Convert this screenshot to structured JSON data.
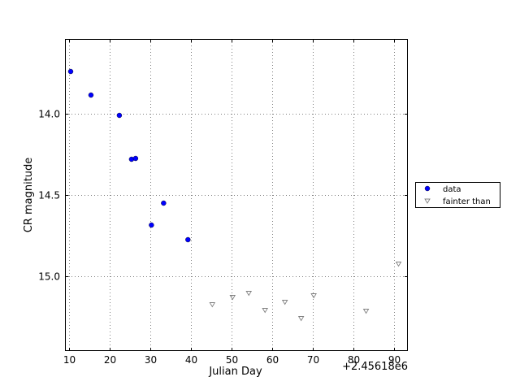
{
  "chart_data": {
    "type": "scatter",
    "xlabel": "Julian Day",
    "ylabel": "CR magnitude",
    "x_offset_label": "+2.45618e6",
    "xlim": [
      9,
      93.5
    ],
    "ylim": [
      15.46,
      13.54
    ],
    "y_inverted": true,
    "grid": true,
    "legend_position": "right",
    "x_ticks": [
      {
        "value": 10,
        "label": "10"
      },
      {
        "value": 20,
        "label": "20"
      },
      {
        "value": 30,
        "label": "30"
      },
      {
        "value": 40,
        "label": "40"
      },
      {
        "value": 50,
        "label": "50"
      },
      {
        "value": 60,
        "label": "60"
      },
      {
        "value": 70,
        "label": "70"
      },
      {
        "value": 80,
        "label": "80"
      },
      {
        "value": 90,
        "label": "90"
      }
    ],
    "y_ticks": [
      {
        "value": 14.0,
        "label": "14.0"
      },
      {
        "value": 14.5,
        "label": "14.5"
      },
      {
        "value": 15.0,
        "label": "15.0"
      }
    ],
    "series": [
      {
        "name": "data",
        "marker": "circle",
        "color": "#0000ff",
        "points": [
          {
            "x": 10.4,
            "y": 13.74
          },
          {
            "x": 15.4,
            "y": 13.885
          },
          {
            "x": 22.4,
            "y": 14.01
          },
          {
            "x": 25.4,
            "y": 14.28
          },
          {
            "x": 26.4,
            "y": 14.275
          },
          {
            "x": 30.3,
            "y": 14.685
          },
          {
            "x": 33.3,
            "y": 14.55
          },
          {
            "x": 39.3,
            "y": 14.775
          }
        ]
      },
      {
        "name": "fainter than",
        "marker": "triangle-down",
        "color": "#808080",
        "points": [
          {
            "x": 45.3,
            "y": 15.175
          },
          {
            "x": 50.3,
            "y": 15.13
          },
          {
            "x": 54.3,
            "y": 15.105
          },
          {
            "x": 58.3,
            "y": 15.21
          },
          {
            "x": 63.2,
            "y": 15.16
          },
          {
            "x": 67.2,
            "y": 15.26
          },
          {
            "x": 70.3,
            "y": 15.12
          },
          {
            "x": 83.2,
            "y": 15.215
          },
          {
            "x": 91.2,
            "y": 14.925
          }
        ]
      }
    ]
  }
}
